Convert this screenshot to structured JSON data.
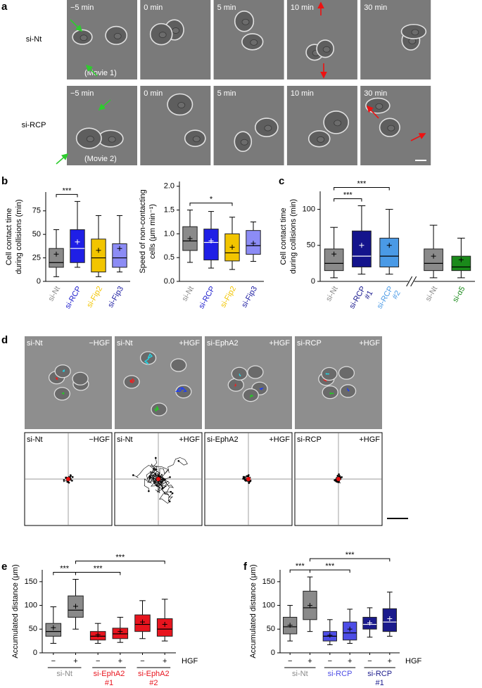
{
  "panel_labels": [
    "a",
    "b",
    "c",
    "d",
    "e",
    "f"
  ],
  "panel_a": {
    "rows": [
      {
        "label": "si-Nt",
        "times": [
          "−5 min",
          "0 min",
          "5 min",
          "10 min",
          "30 min"
        ],
        "movie": "(Movie 1)"
      },
      {
        "label": "si-RCP",
        "times": [
          "−5 min",
          "0 min",
          "5 min",
          "10 min",
          "30 min"
        ],
        "movie": "(Movie 2)"
      }
    ]
  },
  "panel_d": {
    "rows": [
      [
        {
          "sirna": "si-Nt",
          "hgf": "−HGF"
        },
        {
          "sirna": "si-Nt",
          "hgf": "+HGF"
        },
        {
          "sirna": "si-EphA2",
          "hgf": "+HGF"
        },
        {
          "sirna": "si-RCP",
          "hgf": "+HGF"
        }
      ],
      [
        {
          "sirna": "si-Nt",
          "hgf": "−HGF"
        },
        {
          "sirna": "si-Nt",
          "hgf": "+HGF"
        },
        {
          "sirna": "si-EphA2",
          "hgf": "+HGF"
        },
        {
          "sirna": "si-RCP",
          "hgf": "+HGF"
        }
      ]
    ]
  },
  "chart_data": [
    {
      "type": "box",
      "ylabel": [
        "Cell contact time",
        "during collisions (min)"
      ],
      "ylim": [
        0,
        95
      ],
      "yticks": [
        0,
        25,
        50,
        75
      ],
      "categories": [
        "si-Nt",
        "si-RCP",
        "si-Fip2",
        "si-Fip3"
      ],
      "label_colors": [
        "#8a8a8a",
        "#1a1acc",
        "#f2c500",
        "#1a1aa0"
      ],
      "boxes": [
        {
          "color": "#8a8a8a",
          "min": 5,
          "q1": 15,
          "median": 20,
          "q3": 35,
          "max": 55,
          "mean": 29
        },
        {
          "color": "#1f1fe6",
          "min": 15,
          "q1": 20,
          "median": 35,
          "q3": 55,
          "max": 85,
          "mean": 42
        },
        {
          "color": "#f2c500",
          "min": 5,
          "q1": 10,
          "median": 25,
          "q3": 45,
          "max": 70,
          "mean": 33
        },
        {
          "color": "#8c8cf5",
          "min": 10,
          "q1": 15,
          "median": 25,
          "q3": 40,
          "max": 70,
          "mean": 35
        }
      ],
      "brackets": [
        {
          "pair": [
            0,
            1
          ],
          "label": "***"
        }
      ]
    },
    {
      "type": "box",
      "ylabel": [
        "Speed of non-contacting",
        "cells (μm min⁻¹)"
      ],
      "ylim": [
        0,
        2.1
      ],
      "yticks": [
        {
          "value": 0,
          "label": "0.0"
        },
        0.5,
        {
          "value": 1,
          "label": "1.0"
        },
        1.5,
        {
          "value": 2,
          "label": "2.0"
        }
      ],
      "categories": [
        "si-Nt",
        "si-RCP",
        "si-Fip2",
        "si-Fip3"
      ],
      "label_colors": [
        "#8a8a8a",
        "#1a1acc",
        "#f2c500",
        "#1a1aa0"
      ],
      "boxes": [
        {
          "color": "#8a8a8a",
          "min": 0.4,
          "q1": 0.65,
          "median": 0.85,
          "q3": 1.15,
          "max": 1.5,
          "mean": 0.9
        },
        {
          "color": "#1f1fe6",
          "min": 0.28,
          "q1": 0.45,
          "median": 0.82,
          "q3": 1.1,
          "max": 1.47,
          "mean": 0.85
        },
        {
          "color": "#f2c500",
          "min": 0.25,
          "q1": 0.43,
          "median": 0.6,
          "q3": 1.0,
          "max": 1.35,
          "mean": 0.72
        },
        {
          "color": "#8c8cf5",
          "min": 0.42,
          "q1": 0.57,
          "median": 0.75,
          "q3": 1.07,
          "max": 1.25,
          "mean": 0.8
        }
      ],
      "brackets": [
        {
          "pair": [
            0,
            2
          ],
          "label": "*"
        }
      ]
    },
    {
      "type": "box",
      "ylabel": [
        "Cell contact time",
        "during collisions (min)"
      ],
      "ylim": [
        0,
        125
      ],
      "yticks": [
        0,
        50,
        100
      ],
      "categories": [
        [
          "si-Nt"
        ],
        [
          "si-RCP",
          "#1"
        ],
        [
          "si-RCP",
          "#2"
        ],
        [
          "si-Nt"
        ],
        [
          "si-α5"
        ]
      ],
      "label_colors": [
        "#8a8a8a",
        "#14148c",
        "#4a9ae6",
        "#8a8a8a",
        "#1a8a1a"
      ],
      "x_break_after": 2,
      "boxes": [
        {
          "color": "#8a8a8a",
          "min": 5,
          "q1": 15,
          "median": 25,
          "q3": 45,
          "max": 75,
          "mean": 38
        },
        {
          "color": "#14148c",
          "min": 10,
          "q1": 20,
          "median": 35,
          "q3": 70,
          "max": 105,
          "mean": 50
        },
        {
          "color": "#4a9ae6",
          "min": 10,
          "q1": 20,
          "median": 35,
          "q3": 60,
          "max": 100,
          "mean": 50
        },
        {
          "color": "#8a8a8a",
          "min": 5,
          "q1": 15,
          "median": 25,
          "q3": 45,
          "max": 78,
          "mean": 35
        },
        {
          "color": "#1a8a1a",
          "min": 5,
          "q1": 15,
          "median": 20,
          "q3": 35,
          "max": 60,
          "mean": 30
        }
      ],
      "brackets": [
        {
          "pair": [
            0,
            1
          ],
          "label": "***"
        },
        {
          "pair": [
            0,
            2
          ],
          "label": "***"
        }
      ]
    },
    {
      "type": "box",
      "ylabel": [
        "Accumulated distance (μm)"
      ],
      "ylim": [
        0,
        175
      ],
      "yticks": [
        0,
        50,
        100,
        150
      ],
      "categories": [
        "−",
        "+",
        "−",
        "+",
        "−",
        "+"
      ],
      "condition_label": "HGF",
      "groups": [
        {
          "label": [
            "si-Nt"
          ],
          "color": "#8a8a8a"
        },
        {
          "label": [
            "si-EphA2",
            "#1"
          ],
          "color": "#e8141e"
        },
        {
          "label": [
            "si-EphA2",
            "#2"
          ],
          "color": "#e8141e"
        }
      ],
      "boxes": [
        {
          "color": "#8a8a8a",
          "min": 20,
          "q1": 35,
          "median": 45,
          "q3": 62,
          "max": 97,
          "mean": 53
        },
        {
          "color": "#8a8a8a",
          "min": 50,
          "q1": 75,
          "median": 90,
          "q3": 120,
          "max": 155,
          "mean": 98
        },
        {
          "color": "#e8141e",
          "min": 20,
          "q1": 27,
          "median": 35,
          "q3": 45,
          "max": 62,
          "mean": 38
        },
        {
          "color": "#e8141e",
          "min": 22,
          "q1": 30,
          "median": 40,
          "q3": 52,
          "max": 75,
          "mean": 45
        },
        {
          "color": "#e8141e",
          "min": 30,
          "q1": 45,
          "median": 60,
          "q3": 80,
          "max": 110,
          "mean": 65
        },
        {
          "color": "#e8141e",
          "min": 25,
          "q1": 35,
          "median": 50,
          "q3": 72,
          "max": 113,
          "mean": 60
        }
      ],
      "brackets": [
        {
          "pair": [
            0,
            1
          ],
          "label": "***"
        },
        {
          "pair": [
            1,
            3
          ],
          "label": "***"
        },
        {
          "pair": [
            1,
            5
          ],
          "label": "***"
        }
      ]
    },
    {
      "type": "box",
      "ylabel": [
        "Accumulated distance (μm)"
      ],
      "ylim": [
        0,
        175
      ],
      "yticks": [
        0,
        50,
        100,
        150
      ],
      "categories": [
        "−",
        "+",
        "−",
        "+",
        "−",
        "+"
      ],
      "condition_label": "HGF",
      "groups": [
        {
          "label": [
            "si-Nt"
          ],
          "color": "#8a8a8a"
        },
        {
          "label": [
            "si-RCP"
          ],
          "color": "#4d4de6"
        },
        {
          "label": [
            "si-RCP",
            "#1"
          ],
          "color": "#1a1a8c"
        }
      ],
      "boxes": [
        {
          "color": "#8a8a8a",
          "min": 25,
          "q1": 40,
          "median": 55,
          "q3": 75,
          "max": 100,
          "mean": 58
        },
        {
          "color": "#8a8a8a",
          "min": 45,
          "q1": 70,
          "median": 95,
          "q3": 130,
          "max": 160,
          "mean": 100
        },
        {
          "color": "#4d4de6",
          "min": 17,
          "q1": 25,
          "median": 35,
          "q3": 45,
          "max": 70,
          "mean": 37
        },
        {
          "color": "#4d4de6",
          "min": 20,
          "q1": 27,
          "median": 42,
          "q3": 65,
          "max": 92,
          "mean": 50
        },
        {
          "color": "#1a1a8c",
          "min": 33,
          "q1": 50,
          "median": 60,
          "q3": 75,
          "max": 95,
          "mean": 63
        },
        {
          "color": "#1a1a8c",
          "min": 35,
          "q1": 45,
          "median": 65,
          "q3": 93,
          "max": 128,
          "mean": 72
        }
      ],
      "brackets": [
        {
          "pair": [
            0,
            1
          ],
          "label": "***"
        },
        {
          "pair": [
            1,
            3
          ],
          "label": "***"
        },
        {
          "pair": [
            1,
            5
          ],
          "label": "***"
        }
      ]
    }
  ]
}
